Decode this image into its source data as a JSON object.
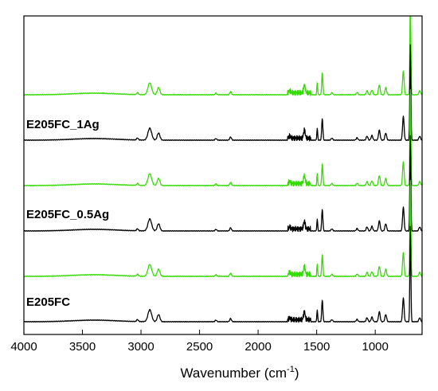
{
  "chart_data": {
    "type": "line",
    "xlabel": "Wavenumber (cm",
    "xlabel_sup": "-1",
    "xlabel_close": ")",
    "xlim": [
      4000,
      600
    ],
    "x_reversed": true,
    "x_ticks": [
      4000,
      3500,
      3000,
      2500,
      2000,
      1500,
      1000
    ],
    "x_tick_labels": [
      "4000",
      "3500",
      "3000",
      "2500",
      "2000",
      "1500",
      "1000"
    ],
    "y_ticks": false,
    "grid": false,
    "legend": "none",
    "colors": {
      "black": "#000000",
      "green": "#33dd00"
    },
    "labels": [
      {
        "id": "label-1ag",
        "text": "E205FC_1Ag"
      },
      {
        "id": "label-05ag",
        "text": "E205FC_0.5Ag"
      },
      {
        "id": "label-ref",
        "text": "E205FC"
      }
    ],
    "peaks_cm-1": {
      "broad_OH_3400": 0.04,
      "3030": 0.05,
      "2925": 0.3,
      "2850": 0.18,
      "2360": 0.04,
      "2235": 0.08,
      "1730": 0.05,
      "1605": 0.2,
      "1495": 0.3,
      "1452": 0.55,
      "1370": 0.05,
      "1155": 0.06,
      "1070": 0.1,
      "1028": 0.12,
      "965": 0.25,
      "910": 0.18,
      "760": 0.6,
      "700": 2.4,
      "620": 0.1
    },
    "series": [
      {
        "color": "green",
        "offset": 1.0
      },
      {
        "color": "black",
        "offset": 0.8
      },
      {
        "color": "green",
        "offset": 0.6
      },
      {
        "color": "black",
        "offset": 0.4
      },
      {
        "color": "green",
        "offset": 0.2
      },
      {
        "color": "black",
        "offset": 0.0
      }
    ]
  }
}
